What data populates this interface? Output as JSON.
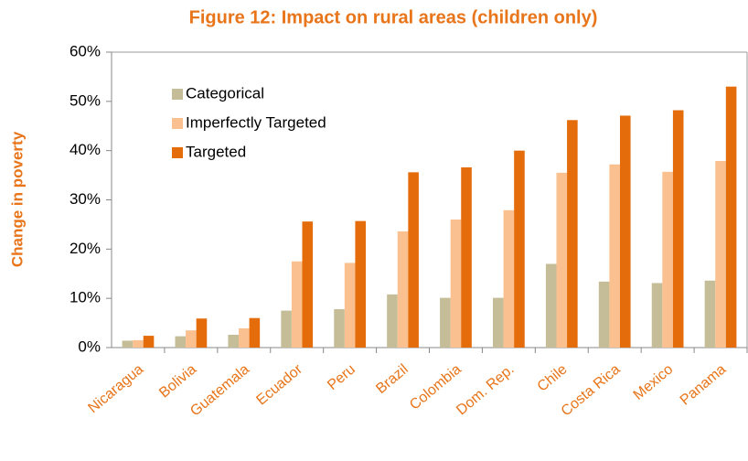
{
  "chart_data": {
    "type": "bar",
    "title": "Figure 12: Impact on rural areas (children only)",
    "y_label": "Change in poverty",
    "categories": [
      "Nicaragua",
      "Bolivia",
      "Guatemala",
      "Ecuador",
      "Peru",
      "Brazil",
      "Colombia",
      "Dom. Rep.",
      "Chile",
      "Costa Rica",
      "Mexico",
      "Panama"
    ],
    "series": [
      {
        "name": "Categorical",
        "color": "#c4bd97",
        "values": [
          1.4,
          2.3,
          2.6,
          7.5,
          7.8,
          10.8,
          10.1,
          10.1,
          17.0,
          13.4,
          13.1,
          13.6
        ]
      },
      {
        "name": "Imperfectly Targeted",
        "color": "#fac090",
        "values": [
          1.5,
          3.5,
          3.9,
          17.5,
          17.2,
          23.6,
          26.0,
          27.9,
          35.5,
          37.2,
          35.7,
          37.9
        ]
      },
      {
        "name": "Targeted",
        "color": "#e46c0a",
        "values": [
          2.4,
          5.9,
          6.0,
          25.6,
          25.7,
          35.6,
          36.6,
          40.0,
          46.2,
          47.1,
          48.2,
          53.0
        ]
      }
    ],
    "ylim": [
      0,
      60
    ],
    "yticks": [
      {
        "value": 0,
        "label": "0%"
      },
      {
        "value": 10,
        "label": "10%"
      },
      {
        "value": 20,
        "label": "20%"
      },
      {
        "value": 30,
        "label": "30%"
      },
      {
        "value": 40,
        "label": "40%"
      },
      {
        "value": 50,
        "label": "50%"
      },
      {
        "value": 60,
        "label": "60%"
      }
    ],
    "legend": "upper left"
  }
}
